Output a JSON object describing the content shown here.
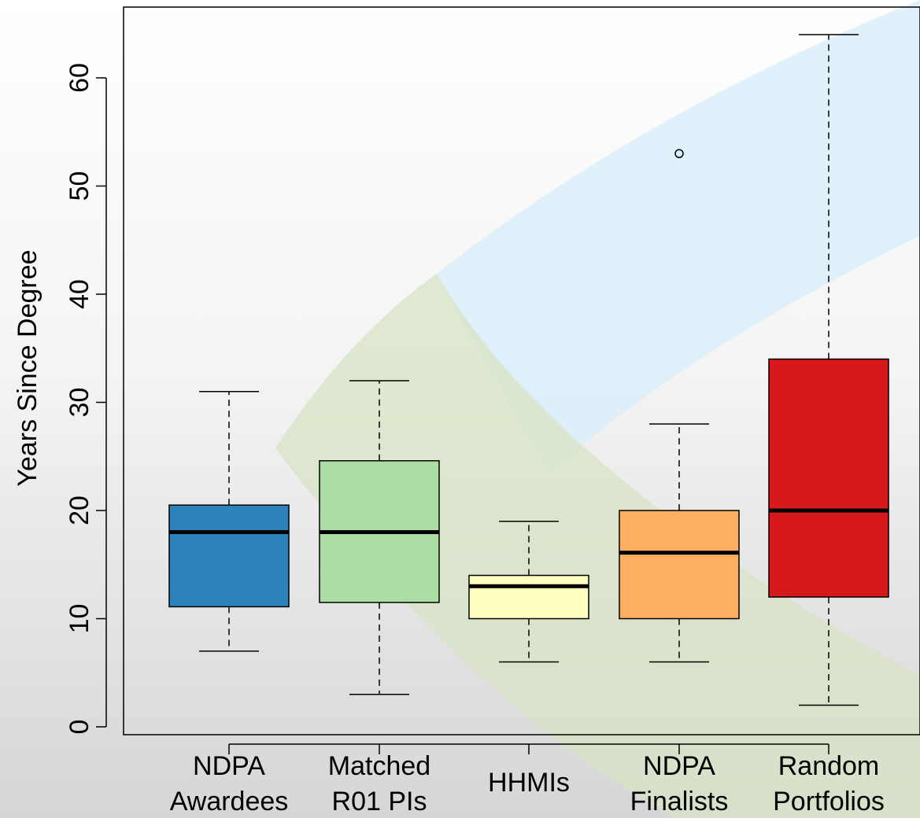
{
  "chart_data": {
    "type": "boxplot",
    "title": "",
    "xlabel": "",
    "ylabel": "Years Since Degree",
    "ylim": [
      0,
      65
    ],
    "yticks": [
      0,
      10,
      20,
      30,
      40,
      50,
      60
    ],
    "ytick_labels": [
      "0",
      "10",
      "20",
      "30",
      "40",
      "50",
      "60"
    ],
    "grid": false,
    "legend": "none",
    "categories": [
      [
        "NDPA",
        "Awardees"
      ],
      [
        "Matched",
        "R01 PIs"
      ],
      [
        "HHMIs"
      ],
      [
        "NDPA",
        "Finalists"
      ],
      [
        "Random",
        "Portfolios"
      ]
    ],
    "series": [
      {
        "category": "NDPA Awardees",
        "whisker_low": 7,
        "q1": 11.1,
        "median": 18,
        "q3": 20.5,
        "whisker_high": 31,
        "outliers": [],
        "color": "#2c83b9"
      },
      {
        "category": "Matched R01 PIs",
        "whisker_low": 3,
        "q1": 11.5,
        "median": 18,
        "q3": 24.6,
        "whisker_high": 32,
        "outliers": [],
        "color": "#abdda4"
      },
      {
        "category": "HHMIs",
        "whisker_low": 6,
        "q1": 10,
        "median": 13,
        "q3": 14,
        "whisker_high": 19,
        "outliers": [],
        "color": "#ffffbf"
      },
      {
        "category": "NDPA Finalists",
        "whisker_low": 6,
        "q1": 10,
        "median": 16.1,
        "q3": 20,
        "whisker_high": 28,
        "outliers": [
          53
        ],
        "color": "#fdae61"
      },
      {
        "category": "Random Portfolios",
        "whisker_low": 2,
        "q1": 12,
        "median": 20,
        "q3": 34,
        "whisker_high": 64,
        "outliers": [],
        "color": "#d7191c"
      }
    ]
  }
}
